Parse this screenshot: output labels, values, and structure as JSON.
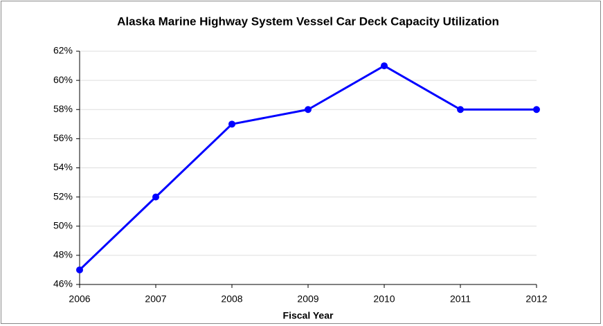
{
  "chart_data": {
    "type": "line",
    "title": "Alaska Marine Highway System Vessel Car Deck Capacity Utilization",
    "x_label": "Fiscal Year",
    "x": [
      2006,
      2007,
      2008,
      2009,
      2010,
      2011,
      2012
    ],
    "xlim": [
      2006,
      2012
    ],
    "xticks": [
      2006,
      2007,
      2008,
      2009,
      2010,
      2011,
      2012
    ],
    "series": [
      {
        "color": "#0000ff",
        "values": [
          47,
          52,
          57,
          58,
          61,
          58,
          58
        ]
      }
    ],
    "ylim": [
      46,
      62
    ],
    "yticks": [
      {
        "value": 46,
        "label": "46%"
      },
      {
        "value": 48,
        "label": "48%"
      },
      {
        "value": 50,
        "label": "50%"
      },
      {
        "value": 52,
        "label": "52%"
      },
      {
        "value": 54,
        "label": "54%"
      },
      {
        "value": 56,
        "label": "56%"
      },
      {
        "value": 58,
        "label": "58%"
      },
      {
        "value": 60,
        "label": "60%"
      },
      {
        "value": 62,
        "label": "62%"
      }
    ],
    "grid": true
  }
}
